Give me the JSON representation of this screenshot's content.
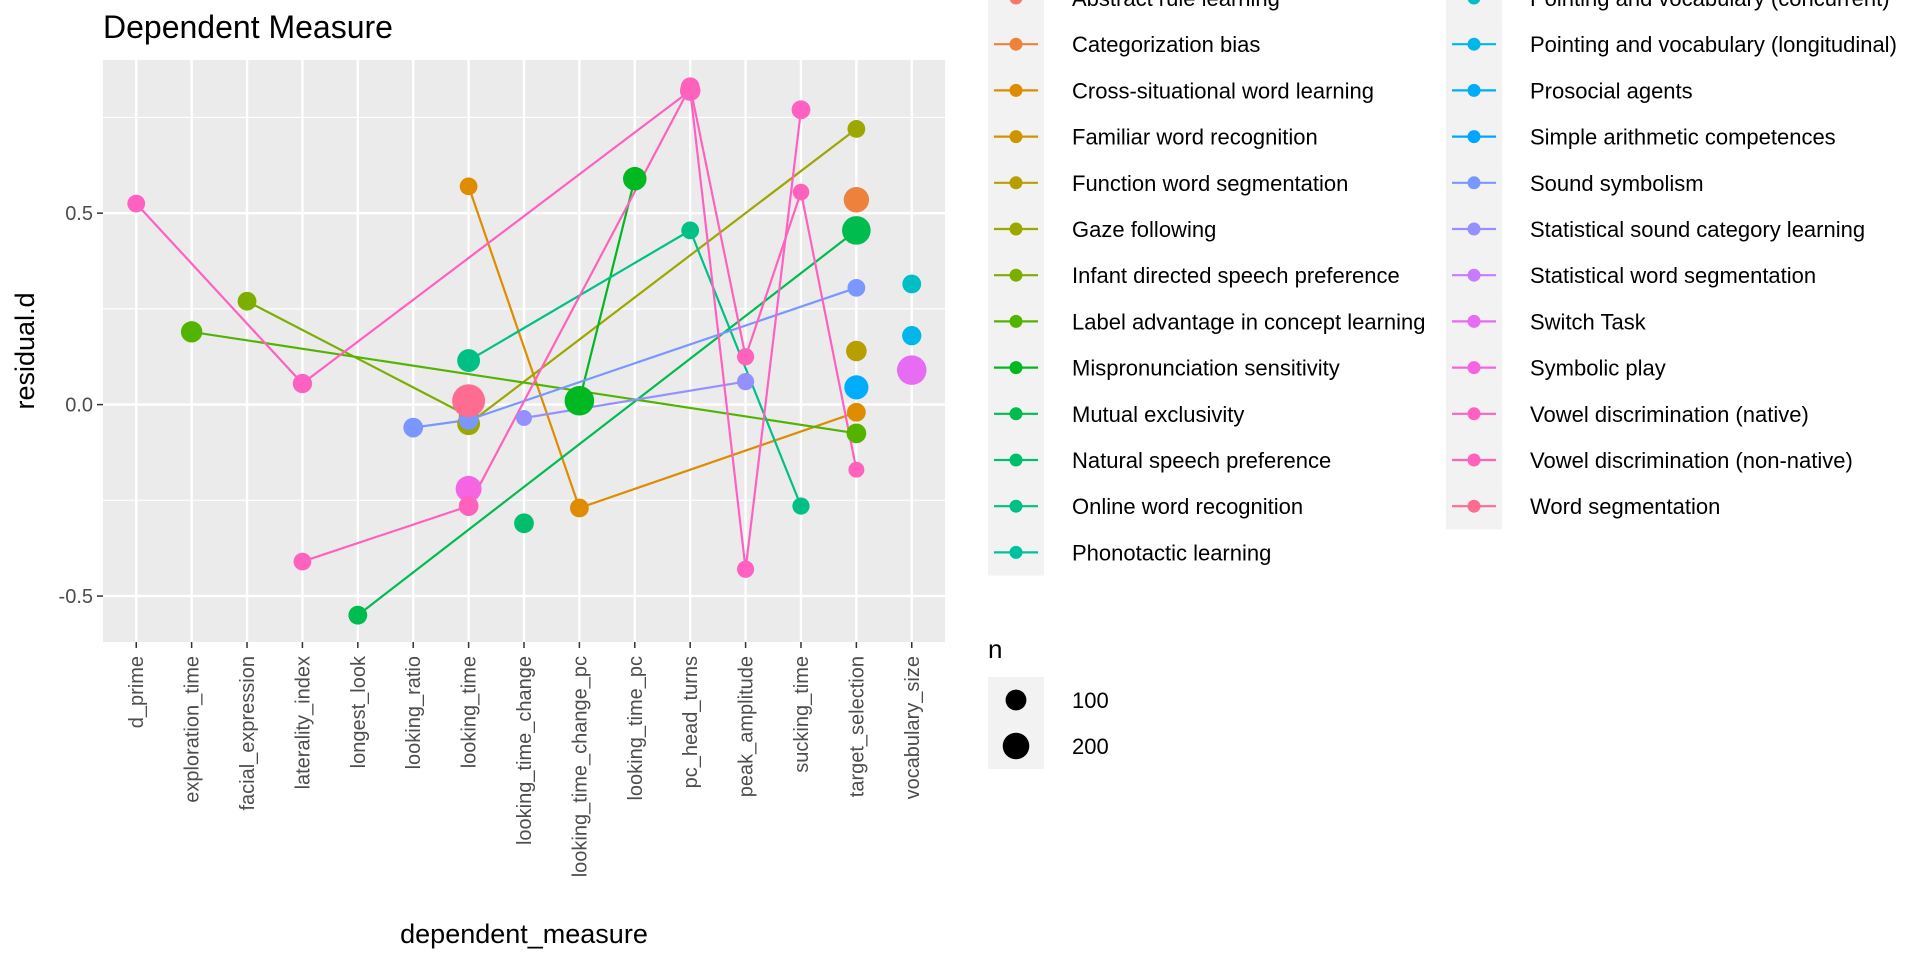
{
  "chart_data": {
    "type": "line",
    "title": "Dependent Measure",
    "xlabel": "dependent_measure",
    "ylabel": "residual.d",
    "categories": [
      "d_prime",
      "exploration_time",
      "facial_expression",
      "laterality_index",
      "longest_look",
      "looking_ratio",
      "looking_time",
      "looking_time_change",
      "looking_time_change_pc",
      "looking_time_pc",
      "pc_head_turns",
      "peak_amplitude",
      "sucking_time",
      "target_selection",
      "vocabulary_size"
    ],
    "y_ticks": [
      -0.5,
      0.0,
      0.5
    ],
    "y_tick_labels": [
      "-0.5",
      "0.0",
      "0.5"
    ],
    "ylim": [
      -0.62,
      0.9
    ],
    "grid": true,
    "legend_position": "right",
    "color_legend": {
      "col1_title_partial": "Abstract rule learning",
      "col2_title_partial": "Pointing and vocabulary (concurrent)"
    },
    "size_legend": {
      "title": "n",
      "entries": [
        {
          "label": "100",
          "value": 100
        },
        {
          "label": "200",
          "value": 200
        }
      ]
    },
    "series": [
      {
        "name": "Abstract rule learning",
        "color": "#F8766D",
        "points": []
      },
      {
        "name": "Categorization bias",
        "color": "#EC823C",
        "points": [
          [
            "target_selection",
            0.535,
            140
          ]
        ]
      },
      {
        "name": "Cross-situational word learning",
        "color": "#DE8C00",
        "points": [
          [
            "looking_time",
            0.57,
            40
          ],
          [
            "looking_time_change_pc",
            -0.27,
            50
          ],
          [
            "target_selection",
            -0.02,
            50
          ]
        ]
      },
      {
        "name": "Familiar word recognition",
        "color": "#CD9600",
        "points": []
      },
      {
        "name": "Function word segmentation",
        "color": "#B79F00",
        "points": [
          [
            "target_selection",
            0.14,
            70
          ]
        ]
      },
      {
        "name": "Gaze following",
        "color": "#9CA700",
        "points": [
          [
            "looking_time",
            -0.05,
            100
          ],
          [
            "target_selection",
            0.72,
            40
          ]
        ]
      },
      {
        "name": "Infant directed speech preference",
        "color": "#7CAE00",
        "points": [
          [
            "facial_expression",
            0.27,
            50
          ],
          [
            "looking_time",
            -0.03,
            60
          ]
        ]
      },
      {
        "name": "Label advantage in concept learning",
        "color": "#53B400",
        "points": [
          [
            "exploration_time",
            0.19,
            80
          ],
          [
            "target_selection",
            -0.075,
            60
          ]
        ]
      },
      {
        "name": "Mispronunciation sensitivity",
        "color": "#00B81F",
        "points": [
          [
            "looking_time_change_pc",
            0.01,
            220
          ],
          [
            "looking_time_pc",
            0.59,
            110
          ]
        ]
      },
      {
        "name": "Mutual exclusivity",
        "color": "#00BB4E",
        "points": [
          [
            "longest_look",
            -0.55,
            50
          ],
          [
            "target_selection",
            0.455,
            200
          ]
        ]
      },
      {
        "name": "Natural speech preference",
        "color": "#00BE6C",
        "points": [
          [
            "looking_time_change",
            -0.31,
            60
          ]
        ]
      },
      {
        "name": "Online word recognition",
        "color": "#00C086",
        "points": [
          [
            "looking_time",
            0.115,
            100
          ],
          [
            "pc_head_turns",
            0.455,
            40
          ],
          [
            "sucking_time",
            -0.265,
            35
          ]
        ]
      },
      {
        "name": "Phonotactic learning",
        "color": "#00C19F",
        "points": []
      },
      {
        "name": "Pointing and vocabulary (concurrent)",
        "color": "#00BFC4",
        "points": [
          [
            "vocabulary_size",
            0.315,
            50
          ]
        ]
      },
      {
        "name": "Pointing and vocabulary (longitudinal)",
        "color": "#00B7E8",
        "points": [
          [
            "vocabulary_size",
            0.18,
            55
          ]
        ]
      },
      {
        "name": "Prosocial agents",
        "color": "#00ADFA",
        "points": [
          [
            "target_selection",
            0.045,
            120
          ]
        ]
      },
      {
        "name": "Simple arithmetic competences",
        "color": "#00A5FF",
        "points": []
      },
      {
        "name": "Sound symbolism",
        "color": "#7997FF",
        "points": [
          [
            "looking_ratio",
            -0.06,
            60
          ],
          [
            "looking_time",
            -0.04,
            60
          ],
          [
            "target_selection",
            0.305,
            40
          ]
        ]
      },
      {
        "name": "Statistical sound category learning",
        "color": "#9590FF",
        "points": [
          [
            "looking_time_change",
            -0.035,
            25
          ],
          [
            "peak_amplitude",
            0.06,
            35
          ]
        ]
      },
      {
        "name": "Statistical word segmentation",
        "color": "#C77CFF",
        "points": []
      },
      {
        "name": "Switch Task",
        "color": "#E76BF3",
        "points": [
          [
            "vocabulary_size",
            0.09,
            220
          ]
        ]
      },
      {
        "name": "Symbolic play",
        "color": "#F564E3",
        "points": [
          [
            "looking_time",
            -0.22,
            150
          ]
        ]
      },
      {
        "name": "Vowel discrimination (native)",
        "color": "#FF61C3",
        "points": [
          [
            "d_prime",
            0.525,
            40
          ],
          [
            "laterality_index",
            0.055,
            55
          ],
          [
            "pc_head_turns",
            0.82,
            70
          ],
          [
            "peak_amplitude",
            -0.43,
            35
          ],
          [
            "sucking_time",
            0.77,
            50
          ]
        ]
      },
      {
        "name": "Vowel discrimination (non-native)",
        "color": "#FF62BC",
        "points": [
          [
            "laterality_index",
            -0.41,
            40
          ],
          [
            "looking_time",
            -0.265,
            60
          ],
          [
            "pc_head_turns",
            0.83,
            50
          ],
          [
            "peak_amplitude",
            0.125,
            35
          ],
          [
            "sucking_time",
            0.555,
            30
          ],
          [
            "target_selection",
            -0.17,
            25
          ]
        ]
      },
      {
        "name": "Word segmentation",
        "color": "#FF6C91",
        "points": [
          [
            "looking_time",
            0.01,
            300
          ]
        ]
      }
    ]
  }
}
